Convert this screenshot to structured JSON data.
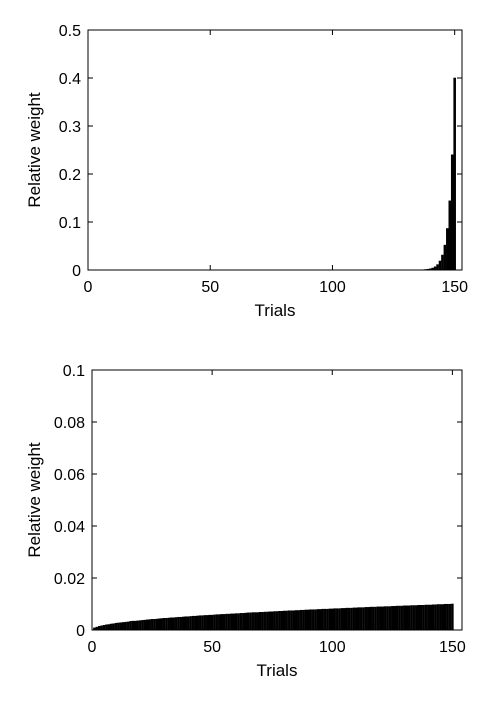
{
  "chart_data": [
    {
      "type": "bar",
      "xlabel": "Trials",
      "ylabel": "Relative weight",
      "color": "#000000",
      "xlim": [
        0,
        153
      ],
      "xticks": [
        0,
        50,
        100,
        150
      ],
      "ylim": [
        0,
        0.5
      ],
      "yticks": [
        0,
        0.1,
        0.2,
        0.3,
        0.4,
        0.5
      ],
      "x": [
        1,
        2,
        3,
        4,
        5,
        6,
        7,
        8,
        9,
        10,
        11,
        12,
        13,
        14,
        15,
        16,
        17,
        18,
        19,
        20,
        21,
        22,
        23,
        24,
        25,
        26,
        27,
        28,
        29,
        30,
        31,
        32,
        33,
        34,
        35,
        36,
        37,
        38,
        39,
        40,
        41,
        42,
        43,
        44,
        45,
        46,
        47,
        48,
        49,
        50,
        51,
        52,
        53,
        54,
        55,
        56,
        57,
        58,
        59,
        60,
        61,
        62,
        63,
        64,
        65,
        66,
        67,
        68,
        69,
        70,
        71,
        72,
        73,
        74,
        75,
        76,
        77,
        78,
        79,
        80,
        81,
        82,
        83,
        84,
        85,
        86,
        87,
        88,
        89,
        90,
        91,
        92,
        93,
        94,
        95,
        96,
        97,
        98,
        99,
        100,
        101,
        102,
        103,
        104,
        105,
        106,
        107,
        108,
        109,
        110,
        111,
        112,
        113,
        114,
        115,
        116,
        117,
        118,
        119,
        120,
        121,
        122,
        123,
        124,
        125,
        126,
        127,
        128,
        129,
        130,
        131,
        132,
        133,
        134,
        135,
        136,
        137,
        138,
        139,
        140,
        141,
        142,
        143,
        144,
        145,
        146,
        147,
        148,
        149,
        150
      ],
      "values": [
        0,
        0,
        0,
        0,
        0,
        0,
        0,
        0,
        0,
        0,
        0,
        0,
        0,
        0,
        0,
        0,
        0,
        0,
        0,
        0,
        0,
        0,
        0,
        0,
        0,
        0,
        0,
        0,
        0,
        0,
        0,
        0,
        0,
        0,
        0,
        0,
        0,
        0,
        0,
        0,
        0,
        0,
        0,
        0,
        0,
        0,
        0,
        0,
        0,
        0,
        0,
        0,
        0,
        0,
        0,
        0,
        0,
        0,
        0,
        0,
        0,
        0,
        0,
        0,
        0,
        0,
        0,
        0,
        0,
        0,
        0,
        0,
        0,
        0,
        0,
        0,
        0,
        0,
        0,
        0,
        0,
        0,
        0,
        0,
        0,
        0,
        0,
        0,
        0,
        0,
        0,
        0,
        0,
        0,
        0,
        0,
        0,
        0,
        0,
        0,
        0,
        0,
        0,
        0,
        0,
        0,
        0,
        0,
        0,
        0,
        0,
        0,
        0,
        0,
        0,
        0,
        0,
        0,
        0,
        0,
        0,
        0,
        0,
        0,
        0,
        0,
        0,
        0,
        0,
        0,
        0,
        0,
        0,
        0.0001,
        0.0002,
        0.0003,
        0.0005,
        0.0009,
        0.0015,
        0.0024,
        0.004,
        0.0067,
        0.0112,
        0.0187,
        0.0311,
        0.0518,
        0.0864,
        0.144,
        0.24,
        0.4
      ]
    },
    {
      "type": "bar",
      "xlabel": "Trials",
      "ylabel": "Relative weight",
      "color": "#000000",
      "xlim": [
        0,
        154
      ],
      "xticks": [
        0,
        50,
        100,
        150
      ],
      "ylim": [
        0,
        0.1
      ],
      "yticks": [
        0,
        0.02,
        0.04,
        0.06,
        0.08,
        0.1
      ],
      "x": [
        1,
        2,
        3,
        4,
        5,
        6,
        7,
        8,
        9,
        10,
        11,
        12,
        13,
        14,
        15,
        16,
        17,
        18,
        19,
        20,
        21,
        22,
        23,
        24,
        25,
        26,
        27,
        28,
        29,
        30,
        31,
        32,
        33,
        34,
        35,
        36,
        37,
        38,
        39,
        40,
        41,
        42,
        43,
        44,
        45,
        46,
        47,
        48,
        49,
        50,
        51,
        52,
        53,
        54,
        55,
        56,
        57,
        58,
        59,
        60,
        61,
        62,
        63,
        64,
        65,
        66,
        67,
        68,
        69,
        70,
        71,
        72,
        73,
        74,
        75,
        76,
        77,
        78,
        79,
        80,
        81,
        82,
        83,
        84,
        85,
        86,
        87,
        88,
        89,
        90,
        91,
        92,
        93,
        94,
        95,
        96,
        97,
        98,
        99,
        100,
        101,
        102,
        103,
        104,
        105,
        106,
        107,
        108,
        109,
        110,
        111,
        112,
        113,
        114,
        115,
        116,
        117,
        118,
        119,
        120,
        121,
        122,
        123,
        124,
        125,
        126,
        127,
        128,
        129,
        130,
        131,
        132,
        133,
        134,
        135,
        136,
        137,
        138,
        139,
        140,
        141,
        142,
        143,
        144,
        145,
        146,
        147,
        148,
        149,
        150
      ],
      "values": [
        0.0008,
        0.0011,
        0.0014,
        0.0016,
        0.0018,
        0.002,
        0.0021,
        0.0023,
        0.0024,
        0.0026,
        0.0027,
        0.0028,
        0.0029,
        0.003,
        0.0031,
        0.0033,
        0.0034,
        0.0034,
        0.0035,
        0.0036,
        0.0037,
        0.0038,
        0.0039,
        0.004,
        0.0041,
        0.0041,
        0.0042,
        0.0043,
        0.0044,
        0.0045,
        0.0045,
        0.0046,
        0.0047,
        0.0047,
        0.0048,
        0.0049,
        0.0049,
        0.005,
        0.0051,
        0.0051,
        0.0052,
        0.0053,
        0.0053,
        0.0054,
        0.0055,
        0.0055,
        0.0056,
        0.0056,
        0.0057,
        0.0057,
        0.0058,
        0.0059,
        0.0059,
        0.006,
        0.006,
        0.0061,
        0.0061,
        0.0062,
        0.0062,
        0.0063,
        0.0063,
        0.0064,
        0.0064,
        0.0065,
        0.0066,
        0.0066,
        0.0067,
        0.0067,
        0.0067,
        0.0068,
        0.0068,
        0.0069,
        0.0069,
        0.007,
        0.007,
        0.0071,
        0.0071,
        0.0072,
        0.0072,
        0.0073,
        0.0073,
        0.0074,
        0.0074,
        0.0074,
        0.0075,
        0.0075,
        0.0076,
        0.0076,
        0.0077,
        0.0077,
        0.0078,
        0.0078,
        0.0078,
        0.0079,
        0.0079,
        0.008,
        0.008,
        0.008,
        0.0081,
        0.0081,
        0.0082,
        0.0082,
        0.0082,
        0.0083,
        0.0083,
        0.0084,
        0.0084,
        0.0084,
        0.0085,
        0.0085,
        0.0086,
        0.0086,
        0.0086,
        0.0087,
        0.0087,
        0.0088,
        0.0088,
        0.0088,
        0.0089,
        0.0089,
        0.0089,
        0.009,
        0.009,
        0.009,
        0.0091,
        0.0091,
        0.0092,
        0.0092,
        0.0092,
        0.0093,
        0.0093,
        0.0093,
        0.0094,
        0.0094,
        0.0094,
        0.0095,
        0.0095,
        0.0095,
        0.0096,
        0.0096,
        0.0096,
        0.0097,
        0.0097,
        0.0098,
        0.0098,
        0.0098,
        0.0099,
        0.0099,
        0.0099,
        0.01
      ]
    }
  ]
}
